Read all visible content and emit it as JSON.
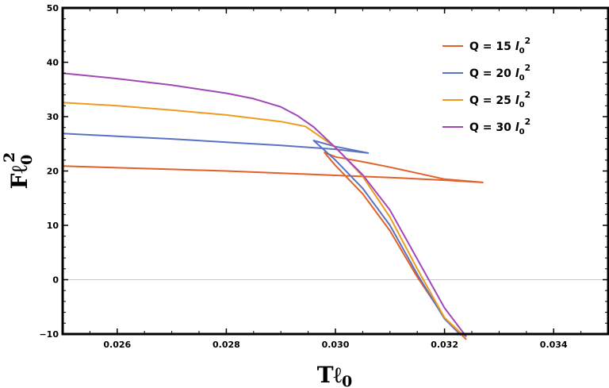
{
  "chart_data": {
    "type": "line",
    "title": "",
    "xlabel": "Tℓ",
    "xlabel_sub": "0",
    "ylabel": "Fℓ",
    "ylabel_sub": "0",
    "ylabel_sup": "2",
    "xlim": [
      0.025,
      0.035
    ],
    "ylim": [
      -10,
      50
    ],
    "x_ticks": [
      0.026,
      0.028,
      0.03,
      0.032,
      0.034
    ],
    "x_tick_labels": [
      "0.026",
      "0.028",
      "0.030",
      "0.032",
      "0.034"
    ],
    "y_ticks": [
      -10,
      0,
      10,
      20,
      30,
      40,
      50
    ],
    "y_tick_labels": [
      "−10",
      "0",
      "10",
      "20",
      "30",
      "40",
      "50"
    ],
    "legend_position": "top-right",
    "series": [
      {
        "name": "Q = 15 l0^2",
        "legend_main": "Q = 15 ",
        "legend_l": "l",
        "legend_sub": "0",
        "legend_sup": "2",
        "color": "#E0612A",
        "x": [
          0.025,
          0.026,
          0.027,
          0.028,
          0.029,
          0.03,
          0.031,
          0.032,
          0.0327,
          0.032,
          0.0315,
          0.031,
          0.0305,
          0.03,
          0.0298,
          0.03,
          0.0305,
          0.031,
          0.0315,
          0.032,
          0.0323,
          0.0324
        ],
        "values": [
          20.9,
          20.6,
          20.3,
          20.0,
          19.6,
          19.2,
          18.8,
          18.3,
          17.9,
          18.5,
          19.6,
          20.7,
          21.7,
          22.6,
          23.4,
          21.0,
          15.8,
          9.0,
          0.5,
          -7.0,
          -10.0,
          -11.0
        ]
      },
      {
        "name": "Q = 20 l0^2",
        "legend_main": "Q = 20 ",
        "legend_l": "l",
        "legend_sub": "0",
        "legend_sup": "2",
        "color": "#5B72C2",
        "x": [
          0.025,
          0.026,
          0.027,
          0.028,
          0.029,
          0.03,
          0.0306,
          0.03,
          0.0296,
          0.03,
          0.0305,
          0.031,
          0.0315,
          0.032,
          0.0323
        ],
        "values": [
          26.9,
          26.4,
          25.9,
          25.3,
          24.7,
          24.0,
          23.3,
          24.5,
          25.6,
          22.0,
          16.8,
          10.0,
          1.0,
          -7.2,
          -10.2
        ]
      },
      {
        "name": "Q = 25 l0^2",
        "legend_main": "Q = 25 ",
        "legend_l": "l",
        "legend_sub": "0",
        "legend_sup": "2",
        "color": "#EE9B1E",
        "x": [
          0.025,
          0.026,
          0.027,
          0.028,
          0.029,
          0.02945,
          0.03,
          0.0305,
          0.031,
          0.0315,
          0.032,
          0.03237
        ],
        "values": [
          32.6,
          32.0,
          31.2,
          30.3,
          29.1,
          28.2,
          24.4,
          19.0,
          11.5,
          2.0,
          -7.0,
          -10.5
        ]
      },
      {
        "name": "Q = 30 l0^2",
        "legend_main": "Q = 30 ",
        "legend_l": "l",
        "legend_sub": "0",
        "legend_sup": "2",
        "color": "#A347B8",
        "x": [
          0.025,
          0.026,
          0.027,
          0.028,
          0.0285,
          0.029,
          0.0293,
          0.0296,
          0.03,
          0.0305,
          0.031,
          0.0315,
          0.032,
          0.0324
        ],
        "values": [
          38.0,
          37.0,
          35.8,
          34.3,
          33.3,
          31.8,
          30.2,
          28.1,
          24.3,
          19.3,
          12.8,
          3.8,
          -5.2,
          -10.5
        ]
      }
    ]
  }
}
